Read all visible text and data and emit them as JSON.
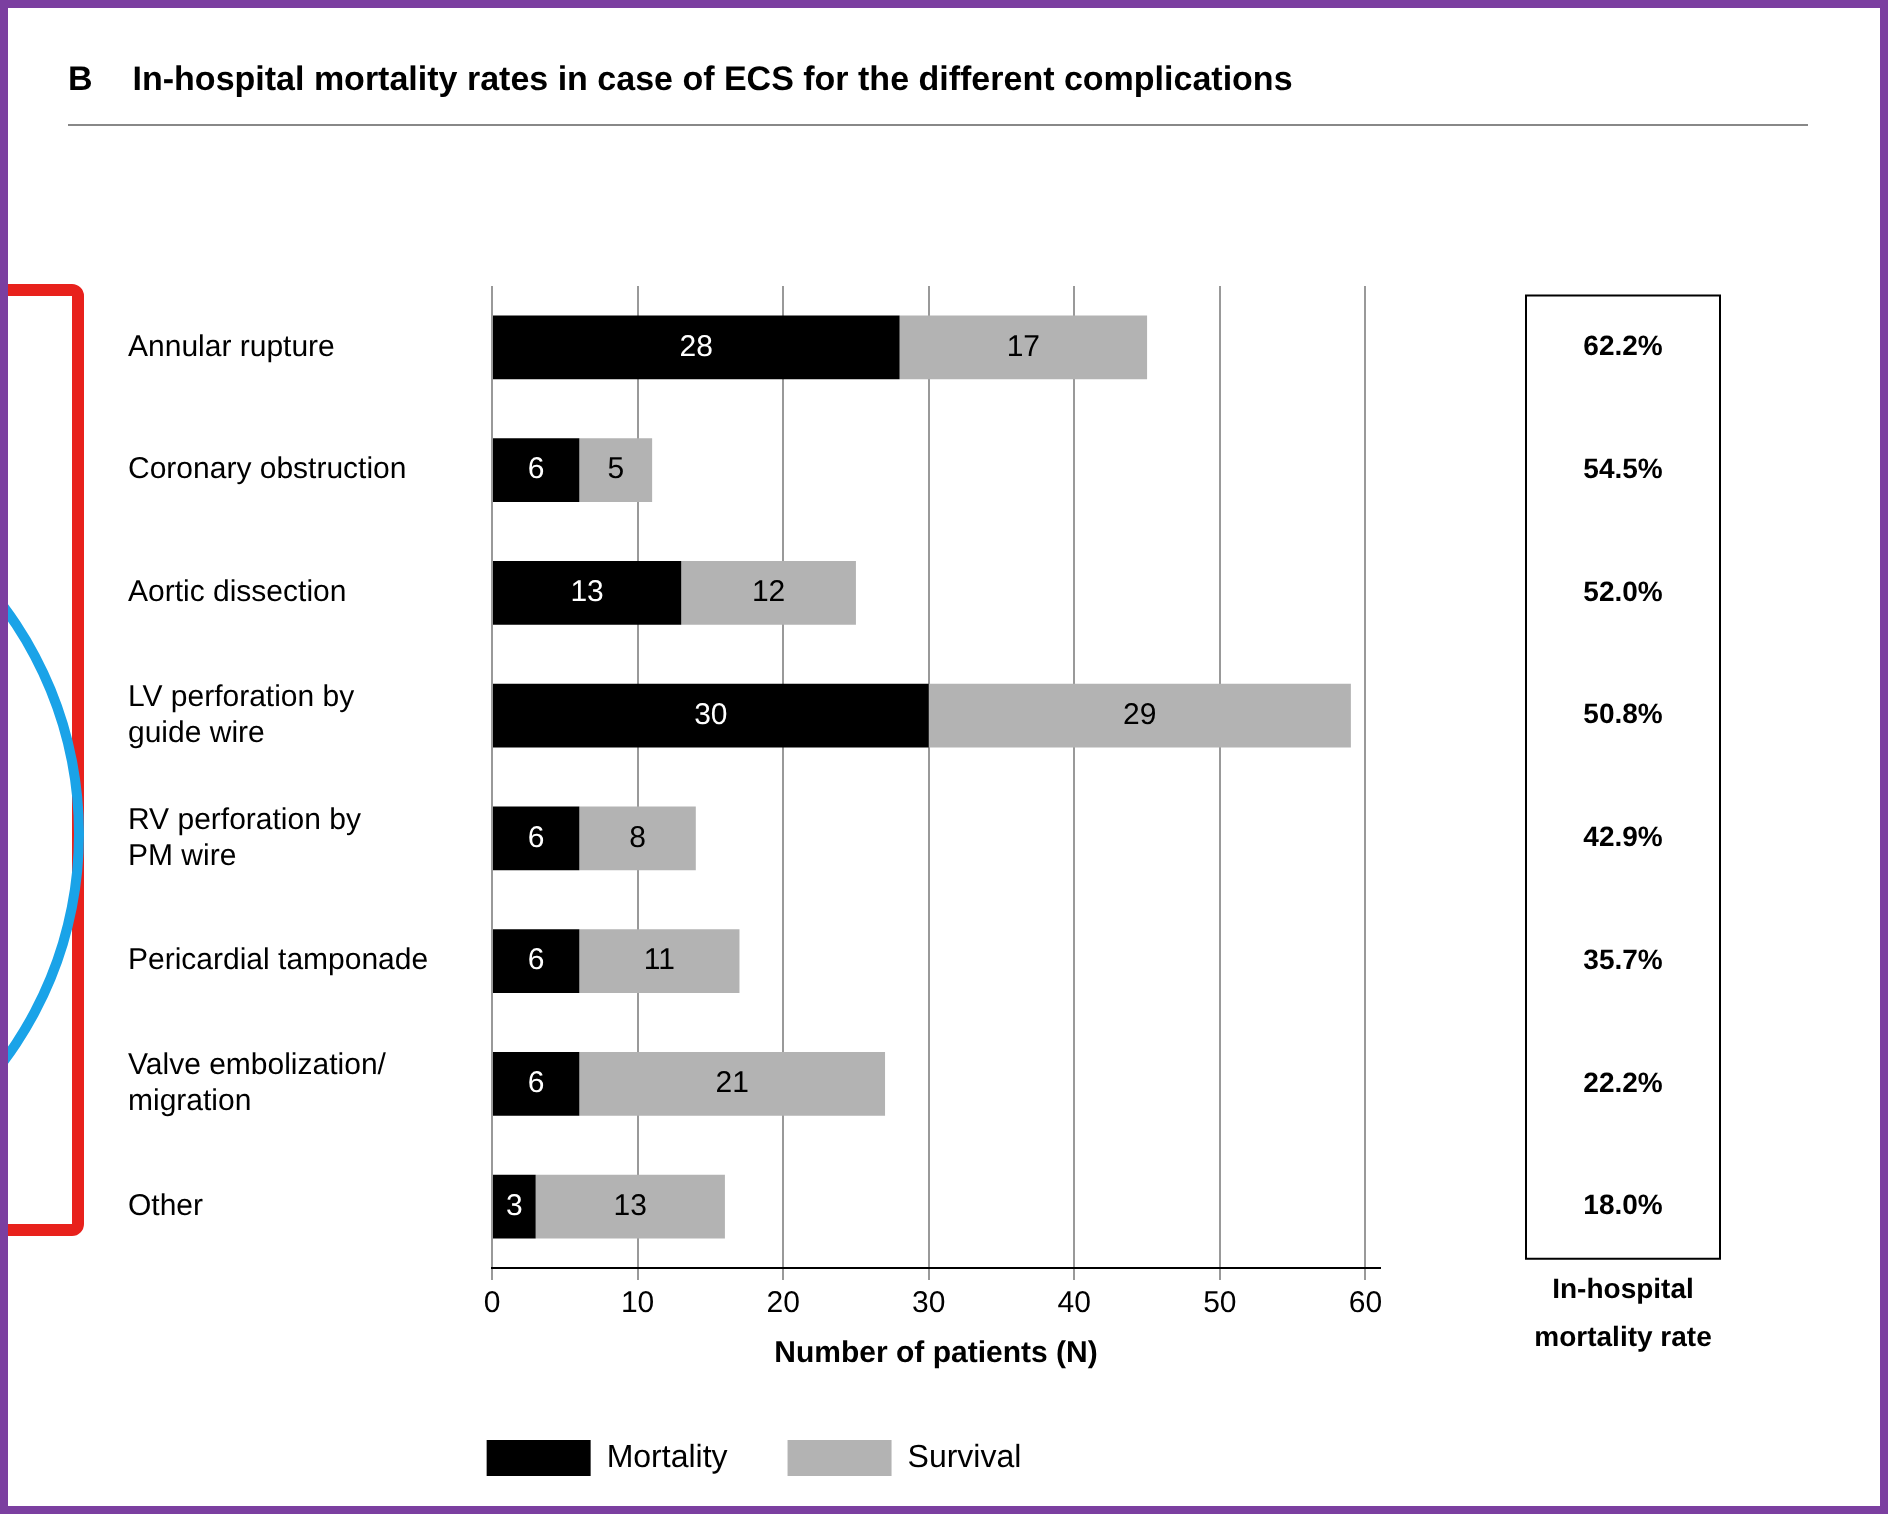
{
  "chart_data": {
    "type": "bar",
    "orientation": "horizontal",
    "stacked": true,
    "title": "In-hospital mortality rates in case of ECS for the different complications",
    "xlabel": "Number of patients (N)",
    "categories": [
      "Annular rupture",
      "Coronary obstruction",
      "Aortic dissection",
      "LV perforation by\nguide wire",
      "RV perforation by\nPM wire",
      "Pericardial tamponade",
      "Valve embolization/\nmigration",
      "Other"
    ],
    "series": [
      {
        "name": "Mortality",
        "color": "#000000",
        "values": [
          28,
          6,
          13,
          30,
          6,
          6,
          6,
          3
        ]
      },
      {
        "name": "Survival",
        "color": "#b3b3b3",
        "values": [
          17,
          5,
          12,
          29,
          8,
          11,
          21,
          13
        ]
      }
    ],
    "xlim": [
      0,
      61
    ],
    "xticks": [
      0,
      10,
      20,
      30,
      40,
      50,
      60
    ],
    "grid": "x",
    "legend": "bottom",
    "data_labels": true,
    "annotations": [
      "B",
      "In-hospital\nmortality rate",
      "62.2%",
      "54.5%",
      "52.0%",
      "50.8%",
      "42.9%",
      "35.7%",
      "22.2%",
      "18.0%"
    ]
  }
}
